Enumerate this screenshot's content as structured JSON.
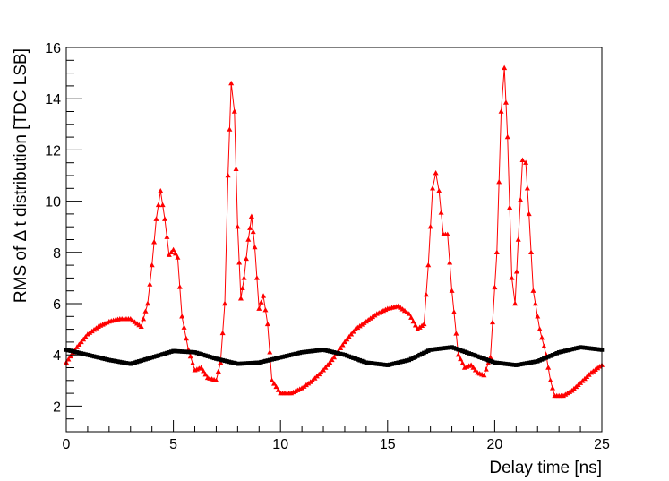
{
  "chart_data": {
    "type": "line",
    "title": "",
    "xlabel": "Delay time [ns]",
    "ylabel": "RMS of Δ t distribution [TDC LSB]",
    "xlim": [
      0,
      25
    ],
    "ylim": [
      1,
      16
    ],
    "x_ticks": [
      0,
      5,
      10,
      15,
      20,
      25
    ],
    "y_ticks": [
      2,
      4,
      6,
      8,
      10,
      12,
      14,
      16
    ],
    "grid": false,
    "legend": "none",
    "series": [
      {
        "color": "#ff0000",
        "marker": "triangle",
        "points": [
          [
            0.0,
            3.7
          ],
          [
            0.5,
            4.3
          ],
          [
            1.0,
            4.8
          ],
          [
            1.5,
            5.1
          ],
          [
            2.0,
            5.3
          ],
          [
            2.5,
            5.4
          ],
          [
            3.0,
            5.4
          ],
          [
            3.5,
            5.1
          ],
          [
            3.8,
            6.0
          ],
          [
            4.0,
            7.5
          ],
          [
            4.2,
            9.3
          ],
          [
            4.4,
            10.4
          ],
          [
            4.6,
            9.3
          ],
          [
            4.8,
            7.9
          ],
          [
            5.0,
            8.1
          ],
          [
            5.2,
            7.8
          ],
          [
            5.4,
            5.5
          ],
          [
            5.7,
            4.2
          ],
          [
            6.0,
            3.4
          ],
          [
            6.3,
            3.5
          ],
          [
            6.6,
            3.1
          ],
          [
            7.0,
            3.0
          ],
          [
            7.2,
            3.7
          ],
          [
            7.4,
            6.0
          ],
          [
            7.55,
            11.0
          ],
          [
            7.7,
            14.6
          ],
          [
            7.85,
            13.5
          ],
          [
            8.0,
            9.0
          ],
          [
            8.15,
            6.2
          ],
          [
            8.3,
            7.0
          ],
          [
            8.5,
            8.5
          ],
          [
            8.65,
            9.4
          ],
          [
            8.8,
            8.2
          ],
          [
            9.0,
            5.8
          ],
          [
            9.2,
            6.3
          ],
          [
            9.4,
            5.2
          ],
          [
            9.6,
            3.0
          ],
          [
            10.0,
            2.5
          ],
          [
            10.5,
            2.5
          ],
          [
            11.0,
            2.7
          ],
          [
            11.5,
            3.0
          ],
          [
            12.0,
            3.4
          ],
          [
            12.5,
            3.9
          ],
          [
            13.0,
            4.5
          ],
          [
            13.5,
            5.0
          ],
          [
            14.0,
            5.3
          ],
          [
            14.5,
            5.6
          ],
          [
            15.0,
            5.8
          ],
          [
            15.5,
            5.9
          ],
          [
            16.0,
            5.6
          ],
          [
            16.4,
            5.0
          ],
          [
            16.7,
            5.2
          ],
          [
            16.9,
            7.5
          ],
          [
            17.1,
            10.5
          ],
          [
            17.25,
            11.1
          ],
          [
            17.4,
            10.4
          ],
          [
            17.6,
            8.7
          ],
          [
            17.8,
            8.7
          ],
          [
            18.0,
            6.5
          ],
          [
            18.3,
            4.0
          ],
          [
            18.6,
            3.5
          ],
          [
            18.9,
            3.6
          ],
          [
            19.2,
            3.3
          ],
          [
            19.5,
            3.2
          ],
          [
            19.8,
            3.9
          ],
          [
            20.1,
            8.0
          ],
          [
            20.3,
            13.5
          ],
          [
            20.45,
            15.2
          ],
          [
            20.6,
            12.5
          ],
          [
            20.8,
            7.0
          ],
          [
            20.95,
            6.0
          ],
          [
            21.1,
            8.5
          ],
          [
            21.3,
            11.6
          ],
          [
            21.45,
            11.5
          ],
          [
            21.6,
            9.5
          ],
          [
            21.8,
            6.5
          ],
          [
            22.1,
            5.0
          ],
          [
            22.4,
            4.0
          ],
          [
            22.6,
            3.0
          ],
          [
            22.8,
            2.4
          ],
          [
            23.2,
            2.4
          ],
          [
            23.6,
            2.6
          ],
          [
            24.0,
            2.9
          ],
          [
            24.5,
            3.3
          ],
          [
            25.0,
            3.6
          ]
        ]
      },
      {
        "color": "#000000",
        "marker": "square",
        "points": [
          [
            0.0,
            4.2
          ],
          [
            1.0,
            4.0
          ],
          [
            2.0,
            3.8
          ],
          [
            3.0,
            3.65
          ],
          [
            4.0,
            3.9
          ],
          [
            5.0,
            4.15
          ],
          [
            6.0,
            4.1
          ],
          [
            7.0,
            3.85
          ],
          [
            8.0,
            3.65
          ],
          [
            9.0,
            3.7
          ],
          [
            10.0,
            3.9
          ],
          [
            11.0,
            4.1
          ],
          [
            12.0,
            4.2
          ],
          [
            13.0,
            4.0
          ],
          [
            14.0,
            3.7
          ],
          [
            15.0,
            3.6
          ],
          [
            16.0,
            3.8
          ],
          [
            17.0,
            4.2
          ],
          [
            18.0,
            4.3
          ],
          [
            19.0,
            4.0
          ],
          [
            20.0,
            3.7
          ],
          [
            21.0,
            3.6
          ],
          [
            22.0,
            3.75
          ],
          [
            23.0,
            4.1
          ],
          [
            24.0,
            4.3
          ],
          [
            25.0,
            4.2
          ]
        ]
      }
    ]
  }
}
